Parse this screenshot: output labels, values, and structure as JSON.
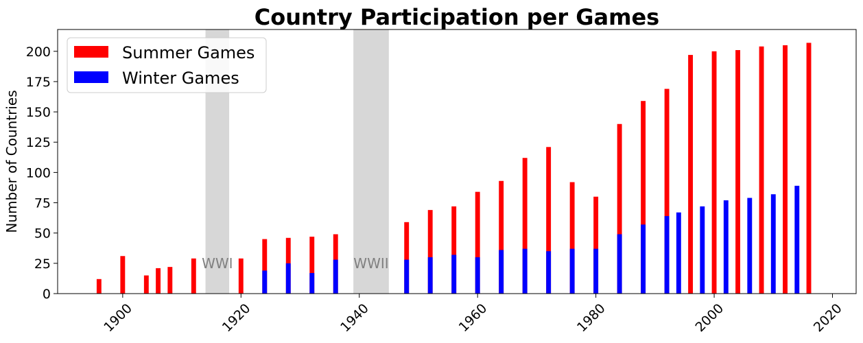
{
  "chart_data": {
    "type": "bar",
    "title": "Country Participation per Games",
    "xlabel": "",
    "ylabel": "Number of Countries",
    "xlim": [
      1889,
      2024
    ],
    "ylim": [
      0,
      218
    ],
    "x_ticks": [
      1900,
      1920,
      1940,
      1960,
      1980,
      2000,
      2020
    ],
    "y_ticks": [
      0,
      25,
      50,
      75,
      100,
      125,
      150,
      175,
      200
    ],
    "grid": false,
    "legend_position": "top-left",
    "series": [
      {
        "name": "Summer Games",
        "color": "#ff0000",
        "points": [
          {
            "x": 1896,
            "y": 12
          },
          {
            "x": 1900,
            "y": 31
          },
          {
            "x": 1904,
            "y": 15
          },
          {
            "x": 1906,
            "y": 21
          },
          {
            "x": 1908,
            "y": 22
          },
          {
            "x": 1912,
            "y": 29
          },
          {
            "x": 1920,
            "y": 29
          },
          {
            "x": 1924,
            "y": 45
          },
          {
            "x": 1928,
            "y": 46
          },
          {
            "x": 1932,
            "y": 47
          },
          {
            "x": 1936,
            "y": 49
          },
          {
            "x": 1948,
            "y": 59
          },
          {
            "x": 1952,
            "y": 69
          },
          {
            "x": 1956,
            "y": 72
          },
          {
            "x": 1960,
            "y": 84
          },
          {
            "x": 1964,
            "y": 93
          },
          {
            "x": 1968,
            "y": 112
          },
          {
            "x": 1972,
            "y": 121
          },
          {
            "x": 1976,
            "y": 92
          },
          {
            "x": 1980,
            "y": 80
          },
          {
            "x": 1984,
            "y": 140
          },
          {
            "x": 1988,
            "y": 159
          },
          {
            "x": 1992,
            "y": 169
          },
          {
            "x": 1996,
            "y": 197
          },
          {
            "x": 2000,
            "y": 200
          },
          {
            "x": 2004,
            "y": 201
          },
          {
            "x": 2008,
            "y": 204
          },
          {
            "x": 2012,
            "y": 205
          },
          {
            "x": 2016,
            "y": 207
          }
        ]
      },
      {
        "name": "Winter Games",
        "color": "#0000ff",
        "points": [
          {
            "x": 1924,
            "y": 19
          },
          {
            "x": 1928,
            "y": 25
          },
          {
            "x": 1932,
            "y": 17
          },
          {
            "x": 1936,
            "y": 28
          },
          {
            "x": 1948,
            "y": 28
          },
          {
            "x": 1952,
            "y": 30
          },
          {
            "x": 1956,
            "y": 32
          },
          {
            "x": 1960,
            "y": 30
          },
          {
            "x": 1964,
            "y": 36
          },
          {
            "x": 1968,
            "y": 37
          },
          {
            "x": 1972,
            "y": 35
          },
          {
            "x": 1976,
            "y": 37
          },
          {
            "x": 1980,
            "y": 37
          },
          {
            "x": 1984,
            "y": 49
          },
          {
            "x": 1988,
            "y": 57
          },
          {
            "x": 1992,
            "y": 64
          },
          {
            "x": 1994,
            "y": 67
          },
          {
            "x": 1998,
            "y": 72
          },
          {
            "x": 2002,
            "y": 77
          },
          {
            "x": 2006,
            "y": 79
          },
          {
            "x": 2010,
            "y": 82
          },
          {
            "x": 2014,
            "y": 89
          }
        ]
      }
    ],
    "annotations": [
      {
        "label": "WWI",
        "start": 1914,
        "end": 1918,
        "color": "#d3d3d3"
      },
      {
        "label": "WWII",
        "start": 1939,
        "end": 1945,
        "color": "#d3d3d3"
      }
    ]
  }
}
